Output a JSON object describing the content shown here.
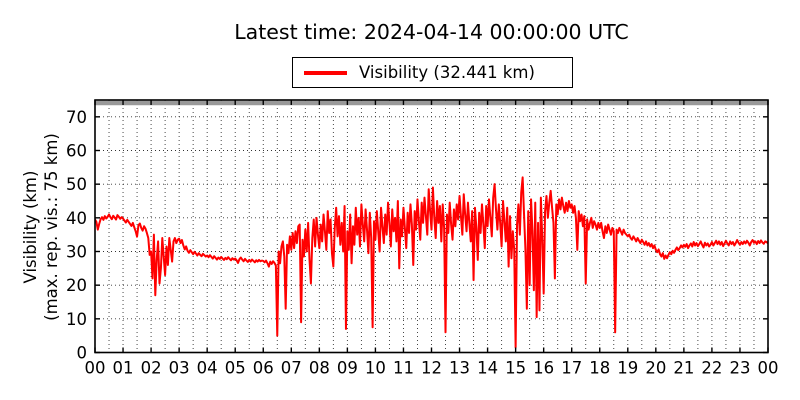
{
  "title": "Latest time: 2024-04-14 00:00:00 UTC",
  "legend": {
    "label": "Visibility (32.441 km)"
  },
  "colors": {
    "series": "#ff0000",
    "max_vis_line": "#999999",
    "frame": "#000000",
    "grid": "#333333",
    "background": "#ffffff",
    "text": "#000000"
  },
  "chart_data": {
    "type": "line",
    "title": "Latest time: 2024-04-14 00:00:00 UTC",
    "ylabel_line1": "Visibility (km)",
    "ylabel_line2": "(max. rep. vis.: 75 km)",
    "xlabel": "",
    "legend_position": "top-center",
    "grid": true,
    "grid_style": "dotted",
    "xlim_hours": [
      0,
      24
    ],
    "ylim": [
      0,
      75
    ],
    "x_tick_hours": [
      0,
      1,
      2,
      3,
      4,
      5,
      6,
      7,
      8,
      9,
      10,
      11,
      12,
      13,
      14,
      15,
      16,
      17,
      18,
      19,
      20,
      21,
      22,
      23,
      24
    ],
    "x_tick_labels": [
      "00",
      "01",
      "02",
      "03",
      "04",
      "05",
      "06",
      "07",
      "08",
      "09",
      "10",
      "11",
      "12",
      "13",
      "14",
      "15",
      "16",
      "17",
      "18",
      "19",
      "20",
      "21",
      "22",
      "23",
      "00"
    ],
    "x_minor_grid_step_hours": 0.5,
    "y_ticks": [
      0,
      10,
      20,
      30,
      40,
      50,
      60,
      70
    ],
    "y_tick_labels": [
      "0",
      "10",
      "20",
      "30",
      "40",
      "50",
      "60",
      "70"
    ],
    "max_reported_visibility_km": 75,
    "latest_value_km": 32.441,
    "series": [
      {
        "name": "Visibility (32.441 km)",
        "color": "#ff0000",
        "start_hour": 0,
        "interval_minutes": 3,
        "values": [
          39.5,
          38.8,
          36.5,
          38.2,
          39.6,
          40.2,
          39.4,
          40.5,
          39.8,
          40.3,
          41.0,
          40.2,
          39.6,
          40.6,
          40.1,
          39.5,
          40.8,
          40.3,
          39.7,
          40.2,
          39.8,
          39.2,
          38.6,
          39.4,
          38.8,
          38.2,
          37.6,
          38.5,
          37.2,
          36.0,
          34.4,
          37.8,
          38.3,
          37.0,
          36.2,
          37.5,
          36.8,
          35.5,
          34.0,
          29.0,
          30.0,
          22.0,
          35.0,
          17.0,
          27.5,
          33.0,
          20.5,
          25.0,
          34.0,
          28.5,
          23.0,
          31.5,
          26.0,
          34.0,
          30.5,
          27.0,
          33.0,
          34.0,
          32.5,
          33.5,
          33.8,
          32.5,
          33.4,
          31.8,
          30.6,
          31.5,
          30.2,
          29.6,
          30.4,
          29.8,
          29.2,
          29.9,
          29.4,
          28.8,
          29.5,
          29.0,
          28.6,
          29.3,
          28.9,
          28.5,
          28.8,
          28.3,
          28.9,
          28.4,
          27.9,
          28.6,
          28.1,
          27.6,
          28.2,
          27.8,
          28.4,
          27.9,
          27.5,
          28.1,
          27.7,
          28.3,
          27.8,
          27.4,
          28.0,
          27.6,
          27.9,
          27.4,
          26.6,
          27.7,
          28.2,
          27.6,
          27.1,
          27.8,
          27.3,
          26.9,
          27.5,
          27.0,
          27.6,
          27.2,
          26.8,
          27.4,
          27.0,
          27.5,
          27.1,
          27.3,
          27.2,
          26.8,
          27.3,
          26.5,
          25.5,
          27.0,
          26.3,
          27.1,
          26.6,
          25.8,
          5.0,
          30.0,
          26.5,
          31.5,
          33.0,
          28.5,
          13.0,
          32.0,
          29.5,
          34.5,
          30.5,
          35.5,
          31.0,
          36.0,
          32.5,
          37.5,
          38.0,
          9.0,
          33.5,
          28.5,
          36.5,
          30.0,
          38.5,
          27.5,
          20.5,
          34.0,
          39.5,
          31.5,
          40.0,
          35.0,
          31.0,
          38.0,
          33.0,
          41.0,
          36.0,
          30.5,
          42.0,
          35.5,
          39.5,
          29.5,
          25.5,
          37.0,
          43.0,
          34.5,
          40.5,
          32.0,
          38.5,
          30.0,
          43.5,
          7.0,
          36.0,
          30.5,
          41.0,
          26.5,
          37.5,
          32.0,
          43.0,
          35.0,
          40.0,
          31.5,
          44.0,
          38.0,
          33.0,
          42.5,
          36.5,
          29.5,
          41.5,
          34.0,
          7.5,
          39.0,
          33.5,
          42.0,
          36.0,
          30.0,
          43.0,
          37.5,
          32.5,
          41.0,
          35.0,
          44.5,
          38.5,
          31.5,
          42.5,
          36.0,
          40.0,
          33.0,
          45.0,
          25.0,
          39.5,
          34.5,
          43.0,
          37.0,
          31.0,
          41.5,
          35.5,
          44.0,
          38.0,
          26.0,
          42.0,
          36.5,
          45.5,
          39.0,
          33.5,
          44.5,
          38.5,
          46.0,
          40.5,
          35.0,
          48.5,
          42.0,
          36.5,
          49.0,
          40.0,
          34.0,
          45.0,
          38.5,
          43.5,
          33.0,
          44.0,
          37.0,
          6.0,
          41.0,
          35.5,
          44.5,
          38.0,
          33.5,
          42.5,
          37.5,
          44.0,
          39.5,
          46.5,
          40.5,
          35.0,
          47.0,
          41.0,
          36.0,
          44.5,
          38.5,
          33.0,
          42.0,
          21.5,
          43.0,
          37.0,
          27.5,
          41.5,
          35.5,
          44.0,
          38.0,
          31.0,
          43.5,
          37.5,
          45.5,
          40.0,
          34.5,
          46.0,
          50.0,
          42.5,
          36.5,
          44.0,
          38.5,
          31.5,
          45.0,
          39.0,
          33.0,
          43.0,
          25.5,
          40.5,
          28.0,
          36.0,
          30.5,
          1.5,
          38.0,
          44.0,
          35.0,
          47.5,
          52.0,
          41.0,
          30.5,
          13.0,
          42.0,
          20.0,
          45.5,
          36.0,
          18.5,
          44.5,
          10.5,
          38.5,
          12.5,
          46.0,
          34.0,
          17.5,
          42.0,
          46.5,
          40.0,
          44.5,
          48.0,
          43.0,
          38.5,
          22.0,
          44.0,
          41.0,
          45.5,
          42.5,
          46.0,
          43.5,
          41.5,
          44.5,
          42.0,
          45.0,
          43.0,
          44.0,
          41.5,
          43.5,
          40.0,
          30.5,
          42.0,
          39.0,
          41.0,
          37.5,
          40.5,
          20.5,
          39.5,
          36.5,
          38.5,
          40.0,
          37.0,
          39.0,
          38.0,
          36.5,
          38.5,
          37.0,
          38.5,
          36.0,
          34.0,
          37.5,
          35.5,
          38.0,
          36.5,
          35.0,
          37.0,
          36.0,
          6.0,
          36.5,
          35.5,
          37.0,
          36.0,
          35.0,
          36.5,
          35.5,
          35.0,
          34.5,
          35.0,
          34.0,
          33.5,
          34.5,
          33.8,
          33.0,
          34.0,
          33.2,
          32.5,
          33.5,
          32.8,
          32.0,
          33.0,
          31.8,
          32.5,
          31.5,
          32.2,
          31.0,
          31.8,
          30.5,
          29.8,
          30.6,
          29.2,
          28.5,
          29.5,
          27.8,
          28.8,
          28.0,
          29.0,
          29.8,
          29.2,
          30.2,
          29.6,
          30.5,
          31.2,
          30.4,
          31.0,
          31.8,
          31.2,
          32.0,
          31.4,
          32.2,
          31.0,
          31.8,
          32.4,
          31.5,
          32.8,
          31.8,
          32.5,
          31.6,
          32.2,
          33.0,
          32.0,
          31.2,
          32.6,
          31.8,
          32.4,
          31.5,
          32.0,
          32.8,
          31.8,
          32.5,
          33.2,
          32.2,
          33.0,
          32.0,
          32.8,
          31.6,
          32.4,
          33.2,
          32.4,
          31.8,
          33.0,
          32.2,
          32.8,
          31.8,
          32.5,
          33.4,
          32.6,
          32.0,
          32.8,
          32.2,
          33.0,
          32.4,
          33.2,
          32.6,
          31.8,
          32.8,
          33.4,
          32.6,
          33.0,
          32.2,
          33.1,
          32.5,
          33.3,
          32.7,
          32.3,
          33.0,
          32.8,
          32.44
        ]
      }
    ]
  }
}
